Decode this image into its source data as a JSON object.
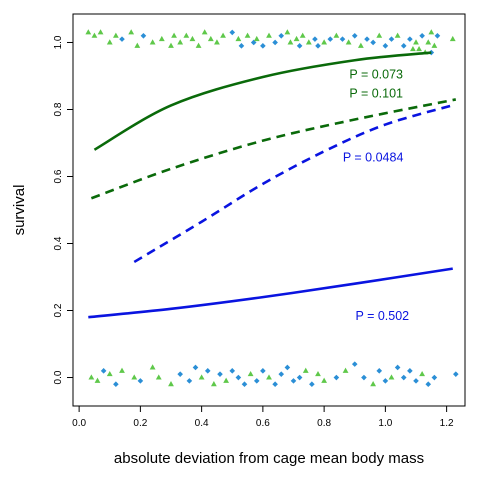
{
  "chart_data": {
    "type": "scatter",
    "title": "",
    "xlabel": "absolute deviation from cage mean body mass",
    "ylabel": "survival",
    "xlim": [
      -0.02,
      1.26
    ],
    "ylim": [
      -0.085,
      1.085
    ],
    "xticks": [
      0.0,
      0.2,
      0.4,
      0.6,
      0.8,
      1.0,
      1.2
    ],
    "xtick_labels": [
      "0.0",
      "0.2",
      "0.4",
      "0.6",
      "0.8",
      "1.0",
      "1.2"
    ],
    "yticks": [
      0.0,
      0.2,
      0.4,
      0.6,
      0.8,
      1.0
    ],
    "ytick_labels": [
      "0.0",
      "0.2",
      "0.4",
      "0.6",
      "0.8",
      "1.0"
    ],
    "grid": false,
    "colors": {
      "green_points": "#5fc84a",
      "blue_points": "#2b8fd6",
      "green_line": "#0a6a0a",
      "blue_line": "#0a14e0"
    },
    "curves": [
      {
        "color": "green",
        "style": "solid",
        "x": [
          0.05,
          0.3,
          0.6,
          0.9,
          1.15
        ],
        "y": [
          0.68,
          0.812,
          0.897,
          0.947,
          0.97
        ]
      },
      {
        "color": "green",
        "style": "dashed",
        "x": [
          0.04,
          0.3,
          0.6,
          0.9,
          1.23
        ],
        "y": [
          0.535,
          0.623,
          0.707,
          0.77,
          0.83
        ]
      },
      {
        "color": "blue",
        "style": "dashed",
        "x": [
          0.18,
          0.4,
          0.6,
          0.8,
          1.0,
          1.23
        ],
        "y": [
          0.345,
          0.465,
          0.578,
          0.675,
          0.755,
          0.815
        ]
      },
      {
        "color": "blue",
        "style": "solid",
        "x": [
          0.03,
          0.3,
          0.6,
          0.9,
          1.22
        ],
        "y": [
          0.18,
          0.205,
          0.24,
          0.28,
          0.325
        ]
      }
    ],
    "annotations": [
      {
        "text": "P = 0.073",
        "color": "green",
        "x": 0.97,
        "y": 0.892
      },
      {
        "text": "P = 0.101",
        "color": "green",
        "x": 0.97,
        "y": 0.836
      },
      {
        "text": "P = 0.0484",
        "color": "blue",
        "x": 0.96,
        "y": 0.645
      },
      {
        "text": "P = 0.502",
        "color": "blue",
        "x": 0.99,
        "y": 0.172
      }
    ],
    "points_top": [
      {
        "x": 0.03,
        "y": 1.03,
        "g": "green"
      },
      {
        "x": 0.05,
        "y": 1.02,
        "g": "green"
      },
      {
        "x": 0.07,
        "y": 1.03,
        "g": "green"
      },
      {
        "x": 0.1,
        "y": 1.0,
        "g": "green"
      },
      {
        "x": 0.12,
        "y": 1.02,
        "g": "green"
      },
      {
        "x": 0.14,
        "y": 1.01,
        "g": "blue"
      },
      {
        "x": 0.17,
        "y": 1.03,
        "g": "green"
      },
      {
        "x": 0.19,
        "y": 0.99,
        "g": "green"
      },
      {
        "x": 0.21,
        "y": 1.02,
        "g": "blue"
      },
      {
        "x": 0.24,
        "y": 1.0,
        "g": "green"
      },
      {
        "x": 0.27,
        "y": 1.01,
        "g": "green"
      },
      {
        "x": 0.3,
        "y": 0.99,
        "g": "green"
      },
      {
        "x": 0.31,
        "y": 1.02,
        "g": "green"
      },
      {
        "x": 0.33,
        "y": 1.0,
        "g": "green"
      },
      {
        "x": 0.35,
        "y": 1.02,
        "g": "green"
      },
      {
        "x": 0.37,
        "y": 1.01,
        "g": "green"
      },
      {
        "x": 0.39,
        "y": 0.99,
        "g": "green"
      },
      {
        "x": 0.41,
        "y": 1.03,
        "g": "green"
      },
      {
        "x": 0.43,
        "y": 1.01,
        "g": "green"
      },
      {
        "x": 0.45,
        "y": 1.0,
        "g": "green"
      },
      {
        "x": 0.47,
        "y": 1.02,
        "g": "green"
      },
      {
        "x": 0.5,
        "y": 1.03,
        "g": "blue"
      },
      {
        "x": 0.52,
        "y": 1.01,
        "g": "green"
      },
      {
        "x": 0.53,
        "y": 0.99,
        "g": "blue"
      },
      {
        "x": 0.55,
        "y": 1.02,
        "g": "green"
      },
      {
        "x": 0.57,
        "y": 1.0,
        "g": "blue"
      },
      {
        "x": 0.58,
        "y": 1.01,
        "g": "green"
      },
      {
        "x": 0.6,
        "y": 0.99,
        "g": "blue"
      },
      {
        "x": 0.62,
        "y": 1.02,
        "g": "green"
      },
      {
        "x": 0.64,
        "y": 1.0,
        "g": "blue"
      },
      {
        "x": 0.66,
        "y": 1.02,
        "g": "blue"
      },
      {
        "x": 0.68,
        "y": 1.03,
        "g": "green"
      },
      {
        "x": 0.69,
        "y": 1.0,
        "g": "green"
      },
      {
        "x": 0.71,
        "y": 1.01,
        "g": "green"
      },
      {
        "x": 0.72,
        "y": 0.99,
        "g": "blue"
      },
      {
        "x": 0.73,
        "y": 1.02,
        "g": "green"
      },
      {
        "x": 0.75,
        "y": 1.0,
        "g": "green"
      },
      {
        "x": 0.77,
        "y": 1.01,
        "g": "blue"
      },
      {
        "x": 0.78,
        "y": 0.99,
        "g": "blue"
      },
      {
        "x": 0.8,
        "y": 1.0,
        "g": "green"
      },
      {
        "x": 0.82,
        "y": 1.01,
        "g": "blue"
      },
      {
        "x": 0.84,
        "y": 1.02,
        "g": "green"
      },
      {
        "x": 0.86,
        "y": 1.01,
        "g": "blue"
      },
      {
        "x": 0.88,
        "y": 1.0,
        "g": "green"
      },
      {
        "x": 0.9,
        "y": 1.02,
        "g": "blue"
      },
      {
        "x": 0.92,
        "y": 0.99,
        "g": "green"
      },
      {
        "x": 0.94,
        "y": 1.01,
        "g": "blue"
      },
      {
        "x": 0.96,
        "y": 1.0,
        "g": "blue"
      },
      {
        "x": 0.98,
        "y": 1.02,
        "g": "green"
      },
      {
        "x": 1.0,
        "y": 0.99,
        "g": "blue"
      },
      {
        "x": 1.02,
        "y": 1.01,
        "g": "blue"
      },
      {
        "x": 1.04,
        "y": 1.02,
        "g": "green"
      },
      {
        "x": 1.06,
        "y": 0.99,
        "g": "blue"
      },
      {
        "x": 1.08,
        "y": 1.01,
        "g": "blue"
      },
      {
        "x": 1.09,
        "y": 0.98,
        "g": "green"
      },
      {
        "x": 1.1,
        "y": 1.0,
        "g": "green"
      },
      {
        "x": 1.11,
        "y": 0.98,
        "g": "green"
      },
      {
        "x": 1.12,
        "y": 1.02,
        "g": "blue"
      },
      {
        "x": 1.13,
        "y": 0.97,
        "g": "green"
      },
      {
        "x": 1.14,
        "y": 1.0,
        "g": "green"
      },
      {
        "x": 1.15,
        "y": 1.03,
        "g": "green"
      },
      {
        "x": 1.15,
        "y": 0.97,
        "g": "blue"
      },
      {
        "x": 1.16,
        "y": 0.99,
        "g": "green"
      },
      {
        "x": 1.17,
        "y": 1.02,
        "g": "blue"
      },
      {
        "x": 1.22,
        "y": 1.01,
        "g": "green"
      }
    ],
    "points_bottom": [
      {
        "x": 0.04,
        "y": 0.0,
        "g": "green"
      },
      {
        "x": 0.06,
        "y": -0.01,
        "g": "green"
      },
      {
        "x": 0.08,
        "y": 0.02,
        "g": "blue"
      },
      {
        "x": 0.1,
        "y": 0.01,
        "g": "green"
      },
      {
        "x": 0.12,
        "y": -0.02,
        "g": "blue"
      },
      {
        "x": 0.14,
        "y": 0.02,
        "g": "green"
      },
      {
        "x": 0.18,
        "y": 0.0,
        "g": "green"
      },
      {
        "x": 0.2,
        "y": -0.01,
        "g": "blue"
      },
      {
        "x": 0.24,
        "y": 0.03,
        "g": "green"
      },
      {
        "x": 0.26,
        "y": 0.0,
        "g": "green"
      },
      {
        "x": 0.3,
        "y": -0.02,
        "g": "green"
      },
      {
        "x": 0.33,
        "y": 0.01,
        "g": "blue"
      },
      {
        "x": 0.36,
        "y": -0.01,
        "g": "blue"
      },
      {
        "x": 0.38,
        "y": 0.03,
        "g": "blue"
      },
      {
        "x": 0.4,
        "y": 0.0,
        "g": "green"
      },
      {
        "x": 0.42,
        "y": 0.02,
        "g": "blue"
      },
      {
        "x": 0.44,
        "y": -0.02,
        "g": "green"
      },
      {
        "x": 0.46,
        "y": 0.01,
        "g": "blue"
      },
      {
        "x": 0.48,
        "y": -0.01,
        "g": "green"
      },
      {
        "x": 0.5,
        "y": 0.02,
        "g": "blue"
      },
      {
        "x": 0.52,
        "y": 0.0,
        "g": "blue"
      },
      {
        "x": 0.54,
        "y": -0.02,
        "g": "blue"
      },
      {
        "x": 0.56,
        "y": 0.01,
        "g": "green"
      },
      {
        "x": 0.58,
        "y": -0.01,
        "g": "blue"
      },
      {
        "x": 0.6,
        "y": 0.02,
        "g": "blue"
      },
      {
        "x": 0.62,
        "y": 0.0,
        "g": "green"
      },
      {
        "x": 0.64,
        "y": -0.02,
        "g": "blue"
      },
      {
        "x": 0.66,
        "y": 0.01,
        "g": "blue"
      },
      {
        "x": 0.68,
        "y": 0.03,
        "g": "blue"
      },
      {
        "x": 0.7,
        "y": -0.01,
        "g": "blue"
      },
      {
        "x": 0.72,
        "y": 0.0,
        "g": "blue"
      },
      {
        "x": 0.74,
        "y": 0.02,
        "g": "green"
      },
      {
        "x": 0.76,
        "y": -0.02,
        "g": "blue"
      },
      {
        "x": 0.78,
        "y": 0.01,
        "g": "green"
      },
      {
        "x": 0.8,
        "y": -0.01,
        "g": "green"
      },
      {
        "x": 0.84,
        "y": 0.0,
        "g": "blue"
      },
      {
        "x": 0.87,
        "y": 0.02,
        "g": "green"
      },
      {
        "x": 0.9,
        "y": 0.04,
        "g": "blue"
      },
      {
        "x": 0.93,
        "y": 0.0,
        "g": "blue"
      },
      {
        "x": 0.96,
        "y": -0.02,
        "g": "green"
      },
      {
        "x": 0.98,
        "y": 0.02,
        "g": "blue"
      },
      {
        "x": 1.0,
        "y": -0.01,
        "g": "blue"
      },
      {
        "x": 1.02,
        "y": 0.0,
        "g": "green"
      },
      {
        "x": 1.04,
        "y": 0.03,
        "g": "blue"
      },
      {
        "x": 1.06,
        "y": 0.0,
        "g": "blue"
      },
      {
        "x": 1.08,
        "y": 0.02,
        "g": "blue"
      },
      {
        "x": 1.1,
        "y": -0.01,
        "g": "blue"
      },
      {
        "x": 1.12,
        "y": 0.01,
        "g": "green"
      },
      {
        "x": 1.14,
        "y": -0.02,
        "g": "blue"
      },
      {
        "x": 1.16,
        "y": 0.0,
        "g": "blue"
      },
      {
        "x": 1.23,
        "y": 0.01,
        "g": "blue"
      }
    ]
  }
}
